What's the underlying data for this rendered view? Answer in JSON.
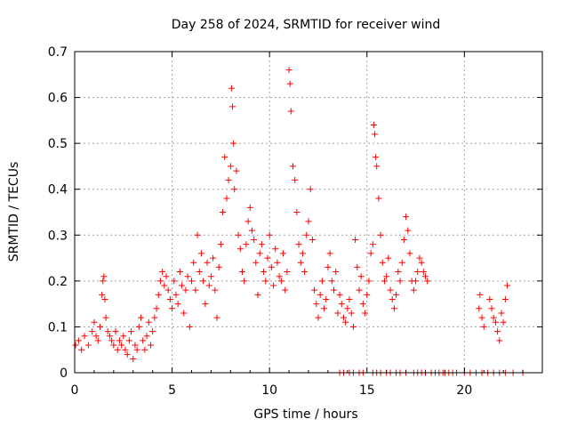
{
  "chart_data": {
    "type": "scatter",
    "title": "Day 258 of 2024, SRMTID for receiver wind",
    "xlabel": "GPS time / hours",
    "ylabel": "SRMTID / TECUs",
    "xlim": [
      0,
      24
    ],
    "ylim": [
      0,
      0.7
    ],
    "xticks": [
      0,
      5,
      10,
      15,
      20
    ],
    "xtick_labels": [
      "0",
      "5",
      "10",
      "15",
      "20"
    ],
    "yticks": [
      0,
      0.1,
      0.2,
      0.3,
      0.4,
      0.5,
      0.6,
      0.7
    ],
    "ytick_labels": [
      "0",
      "0.1",
      "0.2",
      "0.3",
      "0.4",
      "0.5",
      "0.6",
      "0.7"
    ],
    "grid": true,
    "marker": "plus",
    "series": [
      {
        "name": "SRMTID",
        "color": "#ff0000",
        "x": [
          0.05,
          0.2,
          0.35,
          0.5,
          0.7,
          0.9,
          1.0,
          1.1,
          1.2,
          1.3,
          1.4,
          1.45,
          1.5,
          1.55,
          1.6,
          1.7,
          1.8,
          1.9,
          2.0,
          2.1,
          2.2,
          2.3,
          2.4,
          2.5,
          2.6,
          2.7,
          2.8,
          2.9,
          3.0,
          3.1,
          3.2,
          3.3,
          3.4,
          3.5,
          3.6,
          3.7,
          3.8,
          3.9,
          4.0,
          4.1,
          4.2,
          4.3,
          4.4,
          4.5,
          4.6,
          4.7,
          4.8,
          4.9,
          5.0,
          5.1,
          5.2,
          5.3,
          5.4,
          5.5,
          5.6,
          5.7,
          5.8,
          5.9,
          6.0,
          6.1,
          6.2,
          6.3,
          6.4,
          6.5,
          6.6,
          6.7,
          6.8,
          6.9,
          7.0,
          7.1,
          7.2,
          7.3,
          7.4,
          7.5,
          7.6,
          7.7,
          7.8,
          7.9,
          8.0,
          8.05,
          8.1,
          8.15,
          8.2,
          8.3,
          8.4,
          8.5,
          8.6,
          8.7,
          8.8,
          8.9,
          9.0,
          9.1,
          9.2,
          9.3,
          9.4,
          9.5,
          9.6,
          9.7,
          9.8,
          9.9,
          10.0,
          10.1,
          10.2,
          10.3,
          10.4,
          10.5,
          10.6,
          10.7,
          10.8,
          10.9,
          11.0,
          11.05,
          11.1,
          11.2,
          11.3,
          11.4,
          11.5,
          11.6,
          11.7,
          11.8,
          11.9,
          12.0,
          12.1,
          12.2,
          12.3,
          12.4,
          12.5,
          12.6,
          12.7,
          12.8,
          12.9,
          13.0,
          13.1,
          13.2,
          13.3,
          13.4,
          13.5,
          13.6,
          13.7,
          13.8,
          13.9,
          14.0,
          14.1,
          14.2,
          14.3,
          14.4,
          14.5,
          14.6,
          14.7,
          14.8,
          14.9,
          15.0,
          15.1,
          15.2,
          15.3,
          15.35,
          15.4,
          15.45,
          15.5,
          15.6,
          15.7,
          15.8,
          15.9,
          16.0,
          16.1,
          16.2,
          16.3,
          16.4,
          16.5,
          16.6,
          16.7,
          16.8,
          16.9,
          17.0,
          17.1,
          17.2,
          17.3,
          17.4,
          17.5,
          17.6,
          17.7,
          17.8,
          17.9,
          18.0,
          18.1,
          20.75,
          20.8,
          20.9,
          21.0,
          21.3,
          21.4,
          21.5,
          21.6,
          21.7,
          21.8,
          21.9,
          22.0,
          22.1,
          22.2,
          13.6,
          13.8,
          14.1,
          14.3,
          14.6,
          14.8,
          15.3,
          15.5,
          15.7,
          16.0,
          16.2,
          16.5,
          16.7,
          17.0,
          17.4,
          17.6,
          17.8,
          18.0,
          18.3,
          18.5,
          18.7,
          18.9,
          19.0,
          19.2,
          19.4,
          19.6,
          20.0,
          20.3,
          20.6,
          20.9,
          21.2,
          21.5,
          21.8,
          22.1,
          22.5,
          23.0
        ],
        "y": [
          0.06,
          0.07,
          0.05,
          0.08,
          0.06,
          0.09,
          0.11,
          0.08,
          0.07,
          0.1,
          0.17,
          0.2,
          0.21,
          0.16,
          0.12,
          0.09,
          0.08,
          0.07,
          0.06,
          0.09,
          0.05,
          0.07,
          0.06,
          0.08,
          0.05,
          0.04,
          0.07,
          0.09,
          0.03,
          0.06,
          0.05,
          0.1,
          0.12,
          0.07,
          0.05,
          0.08,
          0.11,
          0.06,
          0.09,
          0.12,
          0.14,
          0.17,
          0.2,
          0.22,
          0.19,
          0.21,
          0.18,
          0.16,
          0.14,
          0.2,
          0.17,
          0.15,
          0.22,
          0.19,
          0.13,
          0.18,
          0.21,
          0.1,
          0.2,
          0.24,
          0.18,
          0.3,
          0.22,
          0.26,
          0.2,
          0.15,
          0.24,
          0.19,
          0.21,
          0.25,
          0.18,
          0.12,
          0.23,
          0.28,
          0.35,
          0.47,
          0.38,
          0.42,
          0.45,
          0.62,
          0.58,
          0.5,
          0.4,
          0.44,
          0.3,
          0.27,
          0.22,
          0.2,
          0.28,
          0.33,
          0.36,
          0.31,
          0.29,
          0.24,
          0.17,
          0.26,
          0.28,
          0.22,
          0.2,
          0.25,
          0.3,
          0.23,
          0.19,
          0.27,
          0.24,
          0.21,
          0.2,
          0.26,
          0.18,
          0.22,
          0.66,
          0.63,
          0.57,
          0.45,
          0.42,
          0.35,
          0.28,
          0.24,
          0.26,
          0.22,
          0.3,
          0.33,
          0.4,
          0.29,
          0.18,
          0.15,
          0.12,
          0.17,
          0.2,
          0.14,
          0.16,
          0.23,
          0.26,
          0.2,
          0.18,
          0.22,
          0.13,
          0.17,
          0.15,
          0.12,
          0.11,
          0.14,
          0.16,
          0.13,
          0.1,
          0.29,
          0.23,
          0.18,
          0.21,
          0.15,
          0.13,
          0.17,
          0.2,
          0.26,
          0.28,
          0.54,
          0.52,
          0.47,
          0.45,
          0.38,
          0.3,
          0.24,
          0.2,
          0.21,
          0.25,
          0.18,
          0.16,
          0.14,
          0.17,
          0.22,
          0.2,
          0.24,
          0.29,
          0.34,
          0.31,
          0.26,
          0.2,
          0.18,
          0.2,
          0.22,
          0.25,
          0.24,
          0.22,
          0.21,
          0.2,
          0.14,
          0.17,
          0.12,
          0.1,
          0.16,
          0.14,
          0.12,
          0.11,
          0.09,
          0.07,
          0.13,
          0.11,
          0.16,
          0.19,
          0,
          0,
          0,
          0,
          0,
          0,
          0,
          0,
          0,
          0,
          0,
          0,
          0,
          0,
          0,
          0,
          0,
          0,
          0,
          0,
          0,
          0,
          0,
          0,
          0,
          0,
          0,
          0,
          0,
          0,
          0,
          0,
          0,
          0,
          0,
          0
        ]
      }
    ]
  }
}
